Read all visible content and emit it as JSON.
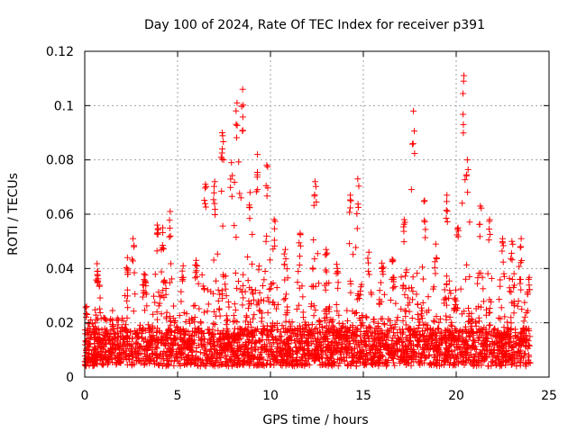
{
  "chart_data": {
    "type": "scatter",
    "title": "Day 100 of 2024, Rate Of TEC Index for receiver p391",
    "xlabel": "GPS time / hours",
    "ylabel": "ROTI / TECUs",
    "xlim": [
      0,
      25
    ],
    "ylim": [
      0,
      0.12
    ],
    "xticks": [
      0,
      5,
      10,
      15,
      20,
      25
    ],
    "xtick_labels": [
      "0",
      "5",
      "10",
      "15",
      "20",
      "25"
    ],
    "yticks": [
      0,
      0.02,
      0.04,
      0.06,
      0.08,
      0.1,
      0.12
    ],
    "ytick_labels": [
      "0",
      "0.02",
      "0.04",
      "0.06",
      "0.08",
      "0.1",
      "0.12"
    ],
    "grid": true,
    "legend": "none",
    "marker": "+",
    "color": "#ff0000",
    "peaks": [
      {
        "x": 0.1,
        "y": 0.026
      },
      {
        "x": 0.7,
        "y": 0.039
      },
      {
        "x": 1.5,
        "y": 0.021
      },
      {
        "x": 2.3,
        "y": 0.044
      },
      {
        "x": 2.6,
        "y": 0.051
      },
      {
        "x": 3.2,
        "y": 0.038
      },
      {
        "x": 3.9,
        "y": 0.056
      },
      {
        "x": 4.2,
        "y": 0.055
      },
      {
        "x": 4.6,
        "y": 0.061
      },
      {
        "x": 5.3,
        "y": 0.041
      },
      {
        "x": 6.0,
        "y": 0.043
      },
      {
        "x": 6.5,
        "y": 0.071
      },
      {
        "x": 7.0,
        "y": 0.072
      },
      {
        "x": 7.4,
        "y": 0.09
      },
      {
        "x": 7.9,
        "y": 0.079
      },
      {
        "x": 8.2,
        "y": 0.101
      },
      {
        "x": 8.5,
        "y": 0.106
      },
      {
        "x": 8.9,
        "y": 0.068
      },
      {
        "x": 9.3,
        "y": 0.082
      },
      {
        "x": 9.8,
        "y": 0.078
      },
      {
        "x": 10.2,
        "y": 0.058
      },
      {
        "x": 10.8,
        "y": 0.047
      },
      {
        "x": 11.6,
        "y": 0.053
      },
      {
        "x": 12.4,
        "y": 0.072
      },
      {
        "x": 13.0,
        "y": 0.047
      },
      {
        "x": 13.6,
        "y": 0.04
      },
      {
        "x": 14.3,
        "y": 0.067
      },
      {
        "x": 14.7,
        "y": 0.073
      },
      {
        "x": 15.3,
        "y": 0.046
      },
      {
        "x": 16.0,
        "y": 0.042
      },
      {
        "x": 16.6,
        "y": 0.043
      },
      {
        "x": 17.2,
        "y": 0.058
      },
      {
        "x": 17.7,
        "y": 0.098
      },
      {
        "x": 18.3,
        "y": 0.065
      },
      {
        "x": 18.9,
        "y": 0.049
      },
      {
        "x": 19.5,
        "y": 0.067
      },
      {
        "x": 20.1,
        "y": 0.055
      },
      {
        "x": 20.4,
        "y": 0.109
      },
      {
        "x": 20.6,
        "y": 0.08
      },
      {
        "x": 21.3,
        "y": 0.063
      },
      {
        "x": 21.8,
        "y": 0.058
      },
      {
        "x": 22.5,
        "y": 0.051
      },
      {
        "x": 23.0,
        "y": 0.05
      },
      {
        "x": 23.5,
        "y": 0.051
      },
      {
        "x": 23.9,
        "y": 0.036
      }
    ]
  }
}
